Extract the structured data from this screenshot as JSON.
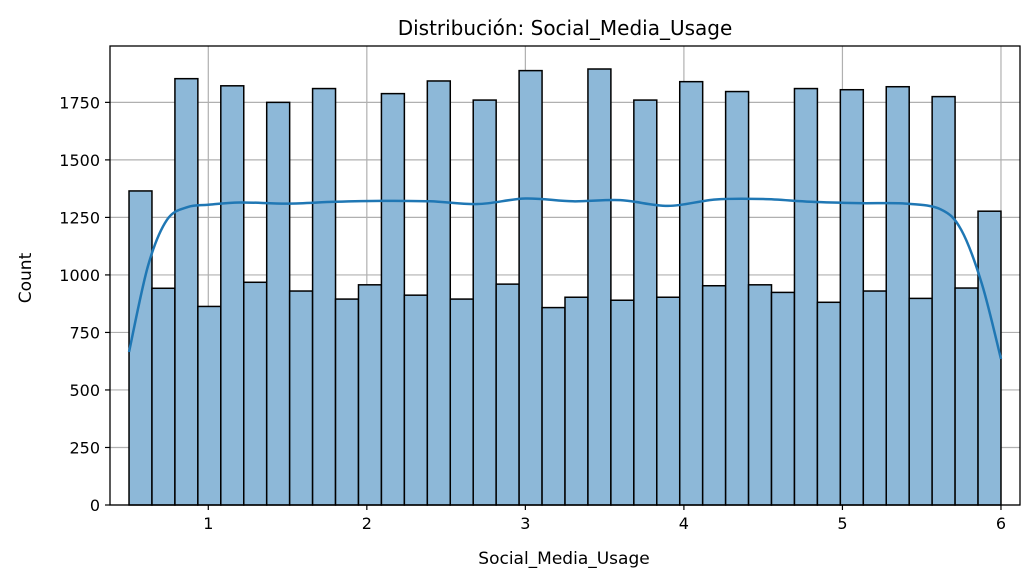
{
  "chart_data": {
    "type": "bar",
    "title": "Distribución: Social_Media_Usage",
    "xlabel": "Social_Media_Usage",
    "ylabel": "Count",
    "xlim": [
      0.38,
      6.12
    ],
    "ylim": [
      0,
      1995
    ],
    "bin_edges": [
      0.5,
      0.6447,
      0.7895,
      0.9342,
      1.0789,
      1.2237,
      1.3684,
      1.5132,
      1.6579,
      1.8026,
      1.9474,
      2.0921,
      2.2368,
      2.3816,
      2.5263,
      2.6711,
      2.8158,
      2.9605,
      3.1053,
      3.25,
      3.3947,
      3.5395,
      3.6842,
      3.8289,
      3.9737,
      4.1184,
      4.2632,
      4.4079,
      4.5526,
      4.6974,
      4.8421,
      4.9868,
      5.1316,
      5.2763,
      5.4211,
      5.5658,
      5.7105,
      5.8553,
      6.0
    ],
    "values": [
      1365,
      942,
      1853,
      863,
      1822,
      968,
      1750,
      930,
      1810,
      895,
      957,
      1788,
      912,
      1843,
      895,
      1760,
      960,
      1888,
      858,
      903,
      1895,
      890,
      1760,
      903,
      1840,
      953,
      1797,
      957,
      924,
      1810,
      881,
      1805,
      930,
      1818,
      898,
      1775,
      943,
      1277
    ],
    "kde": {
      "x": [
        0.5,
        0.62,
        0.74,
        0.87,
        1.0,
        1.2,
        1.5,
        1.8,
        2.1,
        2.4,
        2.7,
        3.0,
        3.3,
        3.6,
        3.9,
        4.2,
        4.5,
        4.8,
        5.1,
        5.4,
        5.62,
        5.75,
        5.88,
        6.0
      ],
      "y": [
        665,
        1040,
        1240,
        1295,
        1305,
        1315,
        1310,
        1318,
        1322,
        1320,
        1308,
        1332,
        1320,
        1325,
        1300,
        1328,
        1330,
        1318,
        1312,
        1310,
        1285,
        1195,
        960,
        635
      ]
    },
    "xticks": [
      1,
      2,
      3,
      4,
      5,
      6
    ],
    "yticks": [
      0,
      250,
      500,
      750,
      1000,
      1250,
      1500,
      1750
    ],
    "grid": true,
    "colors": {
      "bar_fill": "#8db8d8",
      "bar_edge": "#000000",
      "kde_line": "#1f77b4",
      "grid": "#b0b0b0"
    }
  }
}
